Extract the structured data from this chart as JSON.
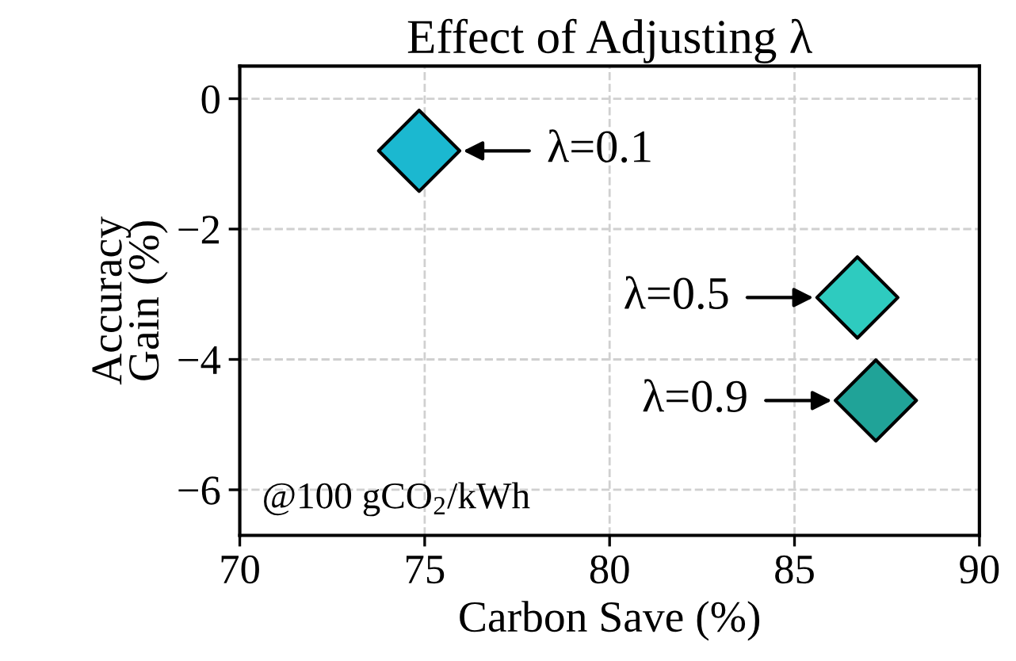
{
  "chart_data": {
    "type": "scatter",
    "title": "Effect of Adjusting λ",
    "xlabel": "Carbon Save (%)",
    "ylabel": "Accuracy\nGain (%)",
    "x": [
      74.85,
      86.7,
      87.2
    ],
    "values": [
      -0.8,
      -3.05,
      -4.63
    ],
    "colors": [
      "#1bb8d0",
      "#2ecbbf",
      "#20a398"
    ],
    "marker": "diamond",
    "xlim": [
      70,
      90
    ],
    "xticks": [
      70,
      75,
      80,
      85,
      90
    ],
    "ylim": [
      -6.7,
      0.5
    ],
    "yticks": [
      {
        "value": 0,
        "label": "0"
      },
      {
        "value": -2,
        "label": "−2"
      },
      {
        "value": -4,
        "label": "−4"
      },
      {
        "value": -6,
        "label": "−6"
      }
    ],
    "grid": true,
    "annotations": [
      {
        "text": "λ=0.1",
        "x": 74.85,
        "y": -0.8
      },
      {
        "text": "λ=0.5",
        "x": 86.7,
        "y": -3.05
      },
      {
        "text": "λ=0.9",
        "x": 87.2,
        "y": -4.63
      },
      "@100 gCO$_{2}$/kWh"
    ]
  }
}
